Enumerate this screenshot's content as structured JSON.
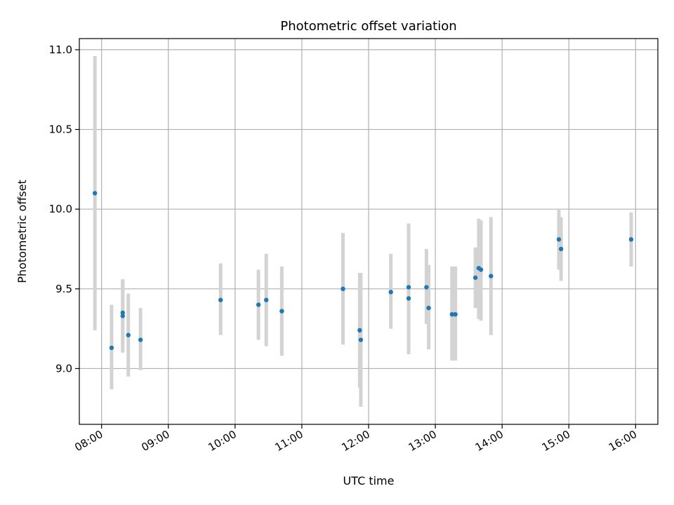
{
  "chart_data": {
    "type": "scatter",
    "title": "Photometric offset variation",
    "xlabel": "UTC time",
    "ylabel": "Photometric offset",
    "xlim": [
      "07:40",
      "16:20"
    ],
    "ylim": [
      8.65,
      11.07
    ],
    "grid": true,
    "x_ticks": [
      "08:00",
      "09:00",
      "10:00",
      "11:00",
      "12:00",
      "13:00",
      "14:00",
      "15:00",
      "16:00"
    ],
    "y_ticks": [
      "9.0",
      "9.5",
      "10.0",
      "10.5",
      "11.0"
    ],
    "marker_color": "#1f77b4",
    "errorbar_color": "#d3d3d3",
    "points": [
      {
        "x": "07:54",
        "y": 10.1,
        "ylow": 9.24,
        "yhigh": 10.96
      },
      {
        "x": "08:09",
        "y": 9.13,
        "ylow": 8.87,
        "yhigh": 9.4
      },
      {
        "x": "08:19",
        "y": 9.35,
        "ylow": 9.14,
        "yhigh": 9.56
      },
      {
        "x": "08:19",
        "y": 9.33,
        "ylow": 9.1,
        "yhigh": 9.56
      },
      {
        "x": "08:24",
        "y": 9.21,
        "ylow": 8.95,
        "yhigh": 9.47
      },
      {
        "x": "08:35",
        "y": 9.18,
        "ylow": 8.99,
        "yhigh": 9.38
      },
      {
        "x": "09:47",
        "y": 9.43,
        "ylow": 9.21,
        "yhigh": 9.66
      },
      {
        "x": "10:21",
        "y": 9.4,
        "ylow": 9.18,
        "yhigh": 9.62
      },
      {
        "x": "10:28",
        "y": 9.43,
        "ylow": 9.14,
        "yhigh": 9.72
      },
      {
        "x": "10:42",
        "y": 9.36,
        "ylow": 9.08,
        "yhigh": 9.64
      },
      {
        "x": "11:37",
        "y": 9.5,
        "ylow": 9.15,
        "yhigh": 9.85
      },
      {
        "x": "11:52",
        "y": 9.24,
        "ylow": 8.88,
        "yhigh": 9.6
      },
      {
        "x": "11:53",
        "y": 9.18,
        "ylow": 8.76,
        "yhigh": 9.6
      },
      {
        "x": "12:20",
        "y": 9.48,
        "ylow": 9.25,
        "yhigh": 9.72
      },
      {
        "x": "12:36",
        "y": 9.51,
        "ylow": 9.12,
        "yhigh": 9.91
      },
      {
        "x": "12:36",
        "y": 9.44,
        "ylow": 9.09,
        "yhigh": 9.8
      },
      {
        "x": "12:52",
        "y": 9.51,
        "ylow": 9.28,
        "yhigh": 9.75
      },
      {
        "x": "12:54",
        "y": 9.38,
        "ylow": 9.12,
        "yhigh": 9.65
      },
      {
        "x": "13:15",
        "y": 9.34,
        "ylow": 9.05,
        "yhigh": 9.64
      },
      {
        "x": "13:18",
        "y": 9.34,
        "ylow": 9.05,
        "yhigh": 9.64
      },
      {
        "x": "13:36",
        "y": 9.57,
        "ylow": 9.38,
        "yhigh": 9.76
      },
      {
        "x": "13:39",
        "y": 9.63,
        "ylow": 9.31,
        "yhigh": 9.94
      },
      {
        "x": "13:41",
        "y": 9.62,
        "ylow": 9.3,
        "yhigh": 9.93
      },
      {
        "x": "13:50",
        "y": 9.58,
        "ylow": 9.21,
        "yhigh": 9.95
      },
      {
        "x": "14:51",
        "y": 9.81,
        "ylow": 9.62,
        "yhigh": 10.0
      },
      {
        "x": "14:53",
        "y": 9.75,
        "ylow": 9.55,
        "yhigh": 9.95
      },
      {
        "x": "15:56",
        "y": 9.81,
        "ylow": 9.64,
        "yhigh": 9.98
      }
    ]
  }
}
